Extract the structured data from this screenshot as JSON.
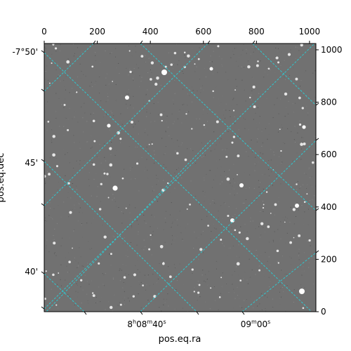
{
  "chart_data": {
    "type": "image",
    "title": "",
    "xlabel": "pos.eq.ra",
    "ylabel": "pos.eq.dec",
    "pixel_axes": {
      "x_range": [
        0,
        1024
      ],
      "y_range": [
        0,
        1024
      ],
      "top_ticks": [
        0,
        200,
        400,
        600,
        800,
        1000
      ],
      "right_ticks": [
        0,
        200,
        400,
        600,
        800,
        1000
      ]
    },
    "ra_ticks": [
      {
        "label": "8h08m40s",
        "text": "8",
        "sup1": "h",
        "mid1": "08",
        "sup2": "m",
        "mid2": "40",
        "sup3": "s"
      },
      {
        "label": "09m00s",
        "text": "",
        "sup1": "",
        "mid1": "09",
        "sup2": "m",
        "mid2": "00",
        "sup3": "s"
      }
    ],
    "dec_ticks": [
      "-7°50'",
      "45'",
      "40'"
    ],
    "grid": true,
    "grid_color": "#2ec8d0",
    "image_background": "#6e6e6e",
    "colormap": "grayscale"
  }
}
